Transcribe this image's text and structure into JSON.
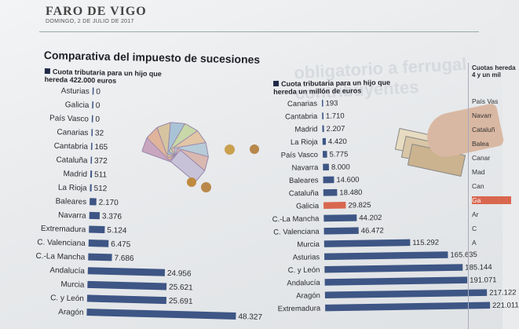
{
  "masthead": "FARO DE VIGO",
  "dateline": "DOMINGO, 2 DE JULIO DE 2017",
  "bleed_text": "obligatorio a ferrugal contribuyentes",
  "title": "Comparativa del impuesto de sucesiones",
  "colors": {
    "bar": "#3e5685",
    "highlight": "#d9674f",
    "title_square": "#1f2a48"
  },
  "chart_data": [
    {
      "type": "bar",
      "orientation": "horizontal",
      "title": "Cuota tributaria para un hijo que hereda 422.000 euros",
      "categories": [
        "Asturias",
        "Galicia",
        "País Vasco",
        "Canarias",
        "Cantabria",
        "Cataluña",
        "Madrid",
        "La Rioja",
        "Baleares",
        "Navarra",
        "Extremadura",
        "C. Valenciana",
        "C.-La Mancha",
        "Andalucía",
        "Murcia",
        "C. y León",
        "Aragón"
      ],
      "values": [
        0,
        0,
        0,
        32,
        165,
        372,
        511,
        512,
        2170,
        3376,
        5124,
        6475,
        7686,
        24956,
        25621,
        25691,
        48327
      ],
      "value_labels": [
        "0",
        "0",
        "0",
        "32",
        "165",
        "372",
        "511",
        "512",
        "2.170",
        "3.376",
        "5.124",
        "6.475",
        "7.686",
        "24.956",
        "25.621",
        "25.691",
        "48.327"
      ]
    },
    {
      "type": "bar",
      "orientation": "horizontal",
      "title": "Cuota tributaria para un hijo que hereda un millón de euros",
      "categories": [
        "Canarias",
        "Cantabria",
        "Madrid",
        "La Rioja",
        "País Vasco",
        "Navarra",
        "Baleares",
        "Cataluña",
        "Galicia",
        "C.-La Mancha",
        "C. Valenciana",
        "Murcia",
        "Asturias",
        "C. y León",
        "Andalucía",
        "Aragón",
        "Extremadura"
      ],
      "values": [
        193,
        1710,
        2207,
        4420,
        5775,
        8000,
        14600,
        18480,
        29825,
        44202,
        46472,
        115292,
        165635,
        185144,
        191071,
        217122,
        221011
      ],
      "value_labels": [
        "193",
        "1.710",
        "2.207",
        "4.420",
        "5.775",
        "8.000",
        "14.600",
        "18.480",
        "29.825",
        "44.202",
        "46.472",
        "115.292",
        "165.635",
        "185.144",
        "191.071",
        "217.122",
        "221.011"
      ],
      "highlight": "Galicia"
    }
  ],
  "partial_panel": {
    "title": "Cuotas hereda 4 y un mil",
    "rows": [
      "País Vas",
      "Navarr",
      "Cataluñ",
      "Balea",
      "Canar",
      "Mad",
      "Can",
      "Ga",
      "Ar",
      "C",
      "A"
    ]
  }
}
